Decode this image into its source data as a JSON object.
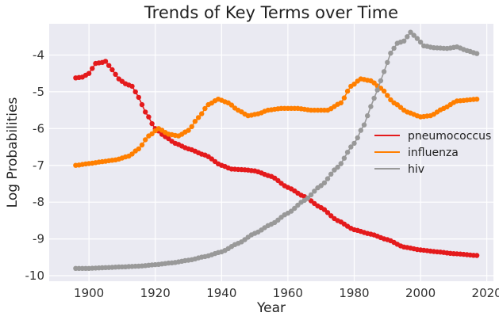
{
  "chart_data": {
    "type": "line",
    "title": "Trends of Key Terms over Time",
    "xlabel": "Year",
    "ylabel": "Log Probabilities",
    "xlim": [
      1888,
      2022
    ],
    "ylim": [
      -10.15,
      -4.0
    ],
    "xticks": [
      1900,
      1920,
      1940,
      1960,
      1980,
      2000,
      2020
    ],
    "yticks": [
      -10,
      -9,
      -8,
      -7,
      -6,
      -5,
      -4
    ],
    "xtick_labels": [
      "1900",
      "1920",
      "1940",
      "1960",
      "1980",
      "2000",
      "2020"
    ],
    "ytick_labels": [
      "-10",
      "-9",
      "-8",
      "-7",
      "-6",
      "-5",
      "-4"
    ],
    "grid": true,
    "background": "#eaeaf2",
    "legend_position": "right",
    "x_start": 1896,
    "x_step": 1,
    "series": [
      {
        "name": "pneumococcus",
        "color": "#e41a1c",
        "anchors": [
          [
            1896,
            -4.62
          ],
          [
            1898,
            -4.6
          ],
          [
            1900,
            -4.5
          ],
          [
            1902,
            -4.23
          ],
          [
            1904,
            -4.2
          ],
          [
            1905,
            -4.17
          ],
          [
            1907,
            -4.4
          ],
          [
            1909,
            -4.65
          ],
          [
            1911,
            -4.78
          ],
          [
            1913,
            -4.85
          ],
          [
            1915,
            -5.15
          ],
          [
            1917,
            -5.55
          ],
          [
            1920,
            -6.0
          ],
          [
            1923,
            -6.22
          ],
          [
            1926,
            -6.4
          ],
          [
            1930,
            -6.55
          ],
          [
            1935,
            -6.72
          ],
          [
            1940,
            -7.0
          ],
          [
            1943,
            -7.1
          ],
          [
            1947,
            -7.12
          ],
          [
            1950,
            -7.15
          ],
          [
            1955,
            -7.3
          ],
          [
            1960,
            -7.6
          ],
          [
            1965,
            -7.85
          ],
          [
            1970,
            -8.15
          ],
          [
            1975,
            -8.5
          ],
          [
            1980,
            -8.75
          ],
          [
            1985,
            -8.87
          ],
          [
            1990,
            -9.02
          ],
          [
            1995,
            -9.22
          ],
          [
            2000,
            -9.3
          ],
          [
            2005,
            -9.35
          ],
          [
            2010,
            -9.4
          ],
          [
            2017,
            -9.45
          ]
        ]
      },
      {
        "name": "influenza",
        "color": "#ff7f00",
        "anchors": [
          [
            1896,
            -7.0
          ],
          [
            1900,
            -6.95
          ],
          [
            1904,
            -6.9
          ],
          [
            1908,
            -6.85
          ],
          [
            1912,
            -6.75
          ],
          [
            1915,
            -6.55
          ],
          [
            1918,
            -6.2
          ],
          [
            1921,
            -6.0
          ],
          [
            1924,
            -6.15
          ],
          [
            1927,
            -6.2
          ],
          [
            1930,
            -6.05
          ],
          [
            1933,
            -5.7
          ],
          [
            1936,
            -5.35
          ],
          [
            1939,
            -5.2
          ],
          [
            1942,
            -5.3
          ],
          [
            1945,
            -5.5
          ],
          [
            1948,
            -5.65
          ],
          [
            1951,
            -5.6
          ],
          [
            1954,
            -5.5
          ],
          [
            1958,
            -5.45
          ],
          [
            1963,
            -5.45
          ],
          [
            1967,
            -5.5
          ],
          [
            1972,
            -5.5
          ],
          [
            1976,
            -5.3
          ],
          [
            1979,
            -4.85
          ],
          [
            1982,
            -4.65
          ],
          [
            1985,
            -4.7
          ],
          [
            1988,
            -4.9
          ],
          [
            1992,
            -5.3
          ],
          [
            1996,
            -5.55
          ],
          [
            2000,
            -5.68
          ],
          [
            2003,
            -5.65
          ],
          [
            2007,
            -5.45
          ],
          [
            2011,
            -5.25
          ],
          [
            2017,
            -5.2
          ]
        ]
      },
      {
        "name": "hiv",
        "color": "#999999",
        "anchors": [
          [
            1896,
            -9.8
          ],
          [
            1900,
            -9.8
          ],
          [
            1905,
            -9.78
          ],
          [
            1910,
            -9.76
          ],
          [
            1915,
            -9.74
          ],
          [
            1920,
            -9.7
          ],
          [
            1925,
            -9.65
          ],
          [
            1930,
            -9.58
          ],
          [
            1935,
            -9.48
          ],
          [
            1940,
            -9.35
          ],
          [
            1945,
            -9.12
          ],
          [
            1950,
            -8.85
          ],
          [
            1955,
            -8.6
          ],
          [
            1960,
            -8.3
          ],
          [
            1965,
            -7.95
          ],
          [
            1970,
            -7.55
          ],
          [
            1975,
            -7.05
          ],
          [
            1980,
            -6.4
          ],
          [
            1983,
            -5.9
          ],
          [
            1985,
            -5.4
          ],
          [
            1987,
            -4.95
          ],
          [
            1989,
            -4.45
          ],
          [
            1991,
            -3.95
          ],
          [
            1993,
            -3.68
          ],
          [
            1995,
            -3.62
          ],
          [
            1997,
            -3.38
          ],
          [
            1999,
            -3.55
          ],
          [
            2001,
            -3.75
          ],
          [
            2004,
            -3.8
          ],
          [
            2008,
            -3.82
          ],
          [
            2011,
            -3.78
          ],
          [
            2014,
            -3.88
          ],
          [
            2017,
            -3.96
          ]
        ]
      }
    ]
  }
}
